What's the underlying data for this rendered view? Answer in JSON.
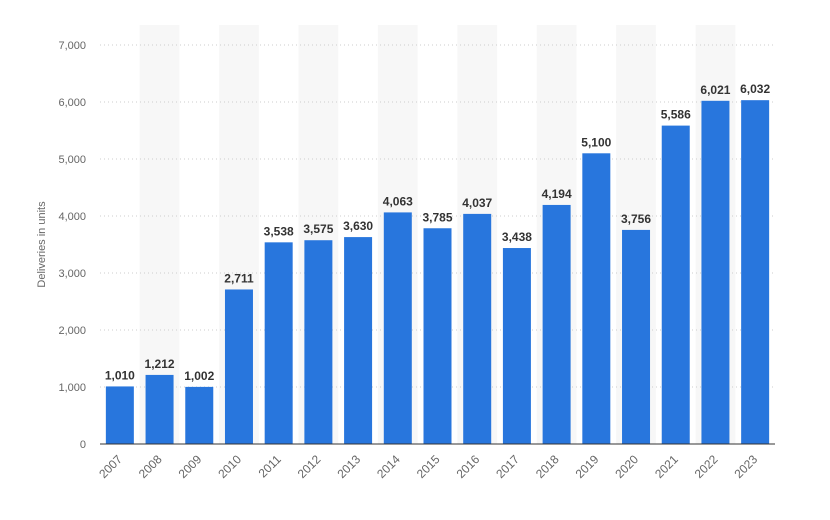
{
  "chart_data": {
    "type": "bar",
    "ylabel": "Deliveries in units",
    "ylim": [
      0,
      7000
    ],
    "yticks": [
      "0",
      "1,000",
      "2,000",
      "3,000",
      "4,000",
      "5,000",
      "6,000",
      "7,000"
    ],
    "ytick_values": [
      0,
      1000,
      2000,
      3000,
      4000,
      5000,
      6000,
      7000
    ],
    "categories": [
      "2007",
      "2008",
      "2009",
      "2010",
      "2011",
      "2012",
      "2013",
      "2014",
      "2015",
      "2016",
      "2017",
      "2018",
      "2019",
      "2020",
      "2021",
      "2022",
      "2023"
    ],
    "values": [
      1010,
      1212,
      1002,
      2711,
      3538,
      3575,
      3630,
      4063,
      3785,
      4037,
      3438,
      4194,
      5100,
      3756,
      5586,
      6021,
      6032
    ],
    "value_labels": [
      "1,010",
      "1,212",
      "1,002",
      "2,711",
      "3,538",
      "3,575",
      "3,630",
      "4,063",
      "3,785",
      "4,037",
      "3,438",
      "4,194",
      "5,100",
      "3,756",
      "5,586",
      "6,021",
      "6,032"
    ],
    "bar_color": "#2876dd",
    "grid": true,
    "legend": "none"
  }
}
